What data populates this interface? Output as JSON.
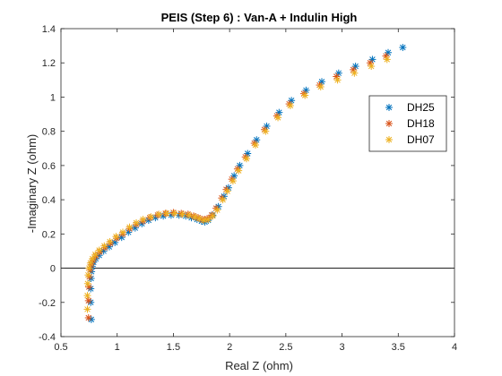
{
  "chart_data": {
    "type": "scatter",
    "title": "PEIS (Step 6) : Van-A + Indulin High",
    "xlabel": "Real Z (ohm)",
    "ylabel": "-Imaginary Z (ohm)",
    "xlim": [
      0.5,
      4
    ],
    "ylim": [
      -0.4,
      1.4
    ],
    "xticks": [
      0.5,
      1,
      1.5,
      2,
      2.5,
      3,
      3.5,
      4
    ],
    "yticks": [
      -0.4,
      -0.2,
      0,
      0.2,
      0.4,
      0.6,
      0.8,
      1,
      1.2,
      1.4
    ],
    "xtick_labels": [
      "0.5",
      "1",
      "1.5",
      "2",
      "2.5",
      "3",
      "3.5",
      "4"
    ],
    "ytick_labels": [
      "-0.4",
      "-0.2",
      "0",
      "0.2",
      "0.4",
      "0.6",
      "0.8",
      "1",
      "1.2",
      "1.4"
    ],
    "zero_line": true,
    "grid": false,
    "legend_position": "top-right",
    "marker": "asterisk",
    "series": [
      {
        "name": "DH25",
        "color": "#0072BD",
        "points": [
          [
            0.77,
            -0.3
          ],
          [
            0.765,
            -0.2
          ],
          [
            0.765,
            -0.12
          ],
          [
            0.768,
            -0.06
          ],
          [
            0.772,
            -0.02
          ],
          [
            0.778,
            0.01
          ],
          [
            0.79,
            0.035
          ],
          [
            0.81,
            0.055
          ],
          [
            0.84,
            0.075
          ],
          [
            0.88,
            0.1
          ],
          [
            0.93,
            0.125
          ],
          [
            0.98,
            0.15
          ],
          [
            1.04,
            0.18
          ],
          [
            1.1,
            0.21
          ],
          [
            1.16,
            0.235
          ],
          [
            1.22,
            0.26
          ],
          [
            1.28,
            0.28
          ],
          [
            1.34,
            0.295
          ],
          [
            1.41,
            0.305
          ],
          [
            1.48,
            0.31
          ],
          [
            1.55,
            0.31
          ],
          [
            1.61,
            0.305
          ],
          [
            1.66,
            0.295
          ],
          [
            1.71,
            0.285
          ],
          [
            1.75,
            0.275
          ],
          [
            1.78,
            0.27
          ],
          [
            1.81,
            0.28
          ],
          [
            1.85,
            0.31
          ],
          [
            1.9,
            0.36
          ],
          [
            1.95,
            0.42
          ],
          [
            1.99,
            0.47
          ],
          [
            2.04,
            0.54
          ],
          [
            2.09,
            0.6
          ],
          [
            2.16,
            0.67
          ],
          [
            2.24,
            0.75
          ],
          [
            2.33,
            0.83
          ],
          [
            2.44,
            0.91
          ],
          [
            2.55,
            0.98
          ],
          [
            2.68,
            1.04
          ],
          [
            2.82,
            1.09
          ],
          [
            2.97,
            1.14
          ],
          [
            3.12,
            1.18
          ],
          [
            3.27,
            1.22
          ],
          [
            3.41,
            1.26
          ],
          [
            3.54,
            1.29
          ]
        ]
      },
      {
        "name": "DH18",
        "color": "#D95319",
        "points": [
          [
            0.745,
            -0.29
          ],
          [
            0.745,
            -0.19
          ],
          [
            0.748,
            -0.11
          ],
          [
            0.752,
            -0.05
          ],
          [
            0.758,
            -0.01
          ],
          [
            0.768,
            0.02
          ],
          [
            0.785,
            0.045
          ],
          [
            0.81,
            0.07
          ],
          [
            0.845,
            0.095
          ],
          [
            0.89,
            0.12
          ],
          [
            0.94,
            0.145
          ],
          [
            0.995,
            0.175
          ],
          [
            1.05,
            0.2
          ],
          [
            1.11,
            0.23
          ],
          [
            1.17,
            0.255
          ],
          [
            1.23,
            0.275
          ],
          [
            1.29,
            0.295
          ],
          [
            1.36,
            0.31
          ],
          [
            1.43,
            0.32
          ],
          [
            1.5,
            0.325
          ],
          [
            1.57,
            0.32
          ],
          [
            1.63,
            0.315
          ],
          [
            1.68,
            0.305
          ],
          [
            1.72,
            0.295
          ],
          [
            1.76,
            0.285
          ],
          [
            1.8,
            0.29
          ],
          [
            1.84,
            0.31
          ],
          [
            1.88,
            0.35
          ],
          [
            1.93,
            0.41
          ],
          [
            1.97,
            0.46
          ],
          [
            2.02,
            0.52
          ],
          [
            2.07,
            0.58
          ],
          [
            2.14,
            0.65
          ],
          [
            2.22,
            0.73
          ],
          [
            2.31,
            0.81
          ],
          [
            2.42,
            0.89
          ],
          [
            2.53,
            0.96
          ],
          [
            2.66,
            1.02
          ],
          [
            2.8,
            1.07
          ],
          [
            2.95,
            1.12
          ],
          [
            3.1,
            1.16
          ],
          [
            3.25,
            1.2
          ],
          [
            3.39,
            1.24
          ]
        ]
      },
      {
        "name": "DH07",
        "color": "#EDB120",
        "points": [
          [
            0.735,
            -0.24
          ],
          [
            0.735,
            -0.16
          ],
          [
            0.738,
            -0.09
          ],
          [
            0.742,
            -0.04
          ],
          [
            0.75,
            0.0
          ],
          [
            0.762,
            0.03
          ],
          [
            0.78,
            0.055
          ],
          [
            0.805,
            0.08
          ],
          [
            0.84,
            0.105
          ],
          [
            0.885,
            0.13
          ],
          [
            0.935,
            0.155
          ],
          [
            0.99,
            0.185
          ],
          [
            1.05,
            0.21
          ],
          [
            1.11,
            0.24
          ],
          [
            1.17,
            0.265
          ],
          [
            1.23,
            0.285
          ],
          [
            1.3,
            0.3
          ],
          [
            1.37,
            0.315
          ],
          [
            1.44,
            0.32
          ],
          [
            1.51,
            0.32
          ],
          [
            1.58,
            0.315
          ],
          [
            1.64,
            0.31
          ],
          [
            1.69,
            0.3
          ],
          [
            1.73,
            0.29
          ],
          [
            1.77,
            0.28
          ],
          [
            1.81,
            0.285
          ],
          [
            1.85,
            0.305
          ],
          [
            1.89,
            0.34
          ],
          [
            1.94,
            0.4
          ],
          [
            1.98,
            0.45
          ],
          [
            2.03,
            0.51
          ],
          [
            2.08,
            0.57
          ],
          [
            2.15,
            0.64
          ],
          [
            2.23,
            0.72
          ],
          [
            2.32,
            0.8
          ],
          [
            2.43,
            0.88
          ],
          [
            2.54,
            0.95
          ],
          [
            2.67,
            1.01
          ],
          [
            2.81,
            1.06
          ],
          [
            2.96,
            1.1
          ],
          [
            3.11,
            1.14
          ],
          [
            3.26,
            1.18
          ],
          [
            3.4,
            1.22
          ]
        ]
      }
    ]
  }
}
